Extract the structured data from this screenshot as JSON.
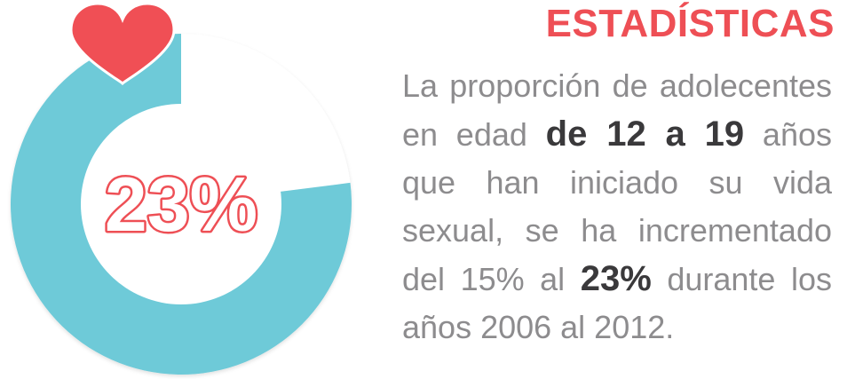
{
  "chart_data": {
    "type": "pie",
    "slices": [
      {
        "value": 23,
        "color": "#ffffff"
      },
      {
        "value": 77,
        "color": "#6ecad8"
      }
    ],
    "center_label": "23%"
  },
  "colors": {
    "ring": "#6ecad8",
    "accent": "#ee4f55",
    "body_text": "#8d8c8e",
    "emphasis_text": "#3a393b"
  },
  "icons": {
    "heart": "heart-icon"
  },
  "heading": "ESTADÍSTICAS",
  "description": {
    "part1": "La proporción de adolecentes en edad",
    "em1": "de 12 a 19",
    "part2": "años que han iniciado su vida sexual, se ha incrementado del 15% al",
    "em2": "23%",
    "part3": "durante los años 2006 al 2012."
  }
}
